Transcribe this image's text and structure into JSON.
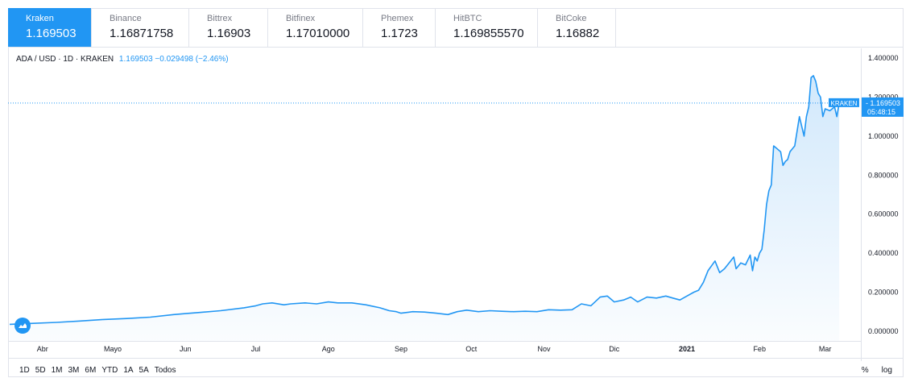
{
  "tabs": [
    {
      "exchange": "Kraken",
      "price": "1.169503",
      "active": true
    },
    {
      "exchange": "Binance",
      "price": "1.16871758",
      "active": false
    },
    {
      "exchange": "Bittrex",
      "price": "1.16903",
      "active": false
    },
    {
      "exchange": "Bitfinex",
      "price": "1.17010000",
      "active": false
    },
    {
      "exchange": "Phemex",
      "price": "1.1723",
      "active": false
    },
    {
      "exchange": "HitBTC",
      "price": "1.169855570",
      "active": false
    },
    {
      "exchange": "BitCoke",
      "price": "1.16882",
      "active": false
    }
  ],
  "legend": {
    "symbol": "ADA / USD · 1D · KRAKEN",
    "values": "1.169503 −0.029498 (−2.46%)"
  },
  "price_tag": {
    "exchange": "KRAKEN",
    "price": "1.169503",
    "countdown": "05:48:15"
  },
  "range_buttons": [
    "1D",
    "5D",
    "1M",
    "3M",
    "6M",
    "YTD",
    "1A",
    "5A",
    "Todos"
  ],
  "right_controls": {
    "percent": "%",
    "log": "log"
  },
  "colors": {
    "line": "#2196f3",
    "accent": "#2196f3",
    "area_top": "#cfe7fb"
  },
  "chart_data": {
    "type": "area",
    "title": "ADA / USD · 1D · KRAKEN",
    "xlabel": "",
    "ylabel": "",
    "ylim": [
      -0.05,
      1.45
    ],
    "y_ticks": [
      "1.400000",
      "1.200000",
      "1.000000",
      "0.800000",
      "0.600000",
      "0.400000",
      "0.200000",
      "0.000000"
    ],
    "y_tick_values": [
      1.4,
      1.2,
      1.0,
      0.8,
      0.6,
      0.4,
      0.2,
      0.0
    ],
    "x_ticks": [
      {
        "label": "Abr",
        "day": 14
      },
      {
        "label": "Mayo",
        "day": 44
      },
      {
        "label": "Jun",
        "day": 75
      },
      {
        "label": "Jul",
        "day": 105
      },
      {
        "label": "Ago",
        "day": 136
      },
      {
        "label": "Sep",
        "day": 167
      },
      {
        "label": "Oct",
        "day": 197
      },
      {
        "label": "Nov",
        "day": 228
      },
      {
        "label": "Dic",
        "day": 258
      },
      {
        "label": "2021",
        "day": 289,
        "bold": true
      },
      {
        "label": "Feb",
        "day": 320
      },
      {
        "label": "Mar",
        "day": 348
      }
    ],
    "grid": false,
    "legend_position": "top-left",
    "last_value": 1.169503,
    "series": [
      {
        "x": [
          0,
          10,
          20,
          30,
          40,
          50,
          60,
          70,
          75,
          80,
          90,
          100,
          105,
          108,
          112,
          117,
          120,
          126,
          131,
          136,
          140,
          146,
          152,
          158,
          162,
          165,
          167,
          172,
          177,
          182,
          187,
          191,
          195,
          200,
          205,
          210,
          215,
          220,
          225,
          230,
          235,
          240,
          244,
          248,
          252,
          255,
          258,
          262,
          265,
          268,
          272,
          276,
          280,
          283,
          286,
          289,
          292,
          294,
          296,
          298,
          301,
          303,
          305,
          307,
          309,
          310,
          312,
          314,
          316,
          317,
          318,
          319,
          320,
          321,
          322,
          323,
          324,
          325,
          326,
          327,
          329,
          330,
          331,
          332,
          333,
          335,
          337,
          338,
          339,
          340,
          341,
          342,
          343,
          344,
          345,
          346,
          347,
          348,
          350,
          352,
          353,
          354
        ],
        "y": [
          0.035,
          0.04,
          0.045,
          0.052,
          0.06,
          0.065,
          0.072,
          0.085,
          0.09,
          0.095,
          0.105,
          0.12,
          0.13,
          0.14,
          0.145,
          0.135,
          0.14,
          0.145,
          0.14,
          0.15,
          0.145,
          0.145,
          0.135,
          0.12,
          0.105,
          0.1,
          0.092,
          0.1,
          0.098,
          0.092,
          0.085,
          0.1,
          0.108,
          0.1,
          0.105,
          0.102,
          0.1,
          0.102,
          0.1,
          0.11,
          0.108,
          0.11,
          0.14,
          0.13,
          0.175,
          0.18,
          0.15,
          0.16,
          0.175,
          0.15,
          0.175,
          0.17,
          0.18,
          0.17,
          0.16,
          0.18,
          0.2,
          0.21,
          0.25,
          0.31,
          0.36,
          0.3,
          0.32,
          0.35,
          0.38,
          0.32,
          0.35,
          0.34,
          0.39,
          0.31,
          0.38,
          0.36,
          0.4,
          0.42,
          0.52,
          0.65,
          0.72,
          0.75,
          0.95,
          0.94,
          0.92,
          0.85,
          0.87,
          0.88,
          0.92,
          0.95,
          1.1,
          1.05,
          1.0,
          1.1,
          1.15,
          1.3,
          1.31,
          1.28,
          1.22,
          1.2,
          1.1,
          1.14,
          1.13,
          1.15,
          1.1,
          1.169503
        ]
      }
    ]
  }
}
